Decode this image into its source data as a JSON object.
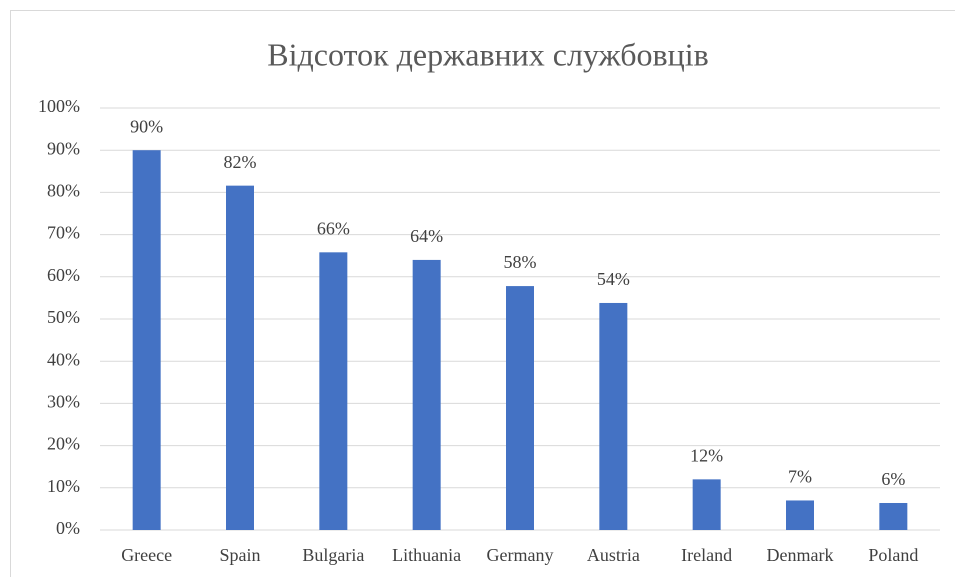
{
  "chart_data": {
    "type": "bar",
    "title": "Відсоток державних службовців",
    "categories": [
      "Greece",
      "Spain",
      "Bulgaria",
      "Lithuania",
      "Germany",
      "Austria",
      "Ireland",
      "Denmark",
      "Poland"
    ],
    "values": [
      90,
      81.6,
      65.8,
      64,
      57.8,
      53.8,
      12,
      7,
      6.4
    ],
    "value_labels": [
      "90%",
      "82%",
      "66%",
      "64%",
      "58%",
      "54%",
      "12%",
      "7%",
      "6%"
    ],
    "color": "#4472c4",
    "ylim": [
      0,
      100
    ],
    "yticks": [
      {
        "value": 0,
        "label": "0%"
      },
      {
        "value": 10,
        "label": "10%"
      },
      {
        "value": 20,
        "label": "20%"
      },
      {
        "value": 30,
        "label": "30%"
      },
      {
        "value": 40,
        "label": "40%"
      },
      {
        "value": 50,
        "label": "50%"
      },
      {
        "value": 60,
        "label": "60%"
      },
      {
        "value": 70,
        "label": "70%"
      },
      {
        "value": 80,
        "label": "80%"
      },
      {
        "value": 90,
        "label": "90%"
      },
      {
        "value": 100,
        "label": "100%"
      }
    ],
    "grid": true
  }
}
